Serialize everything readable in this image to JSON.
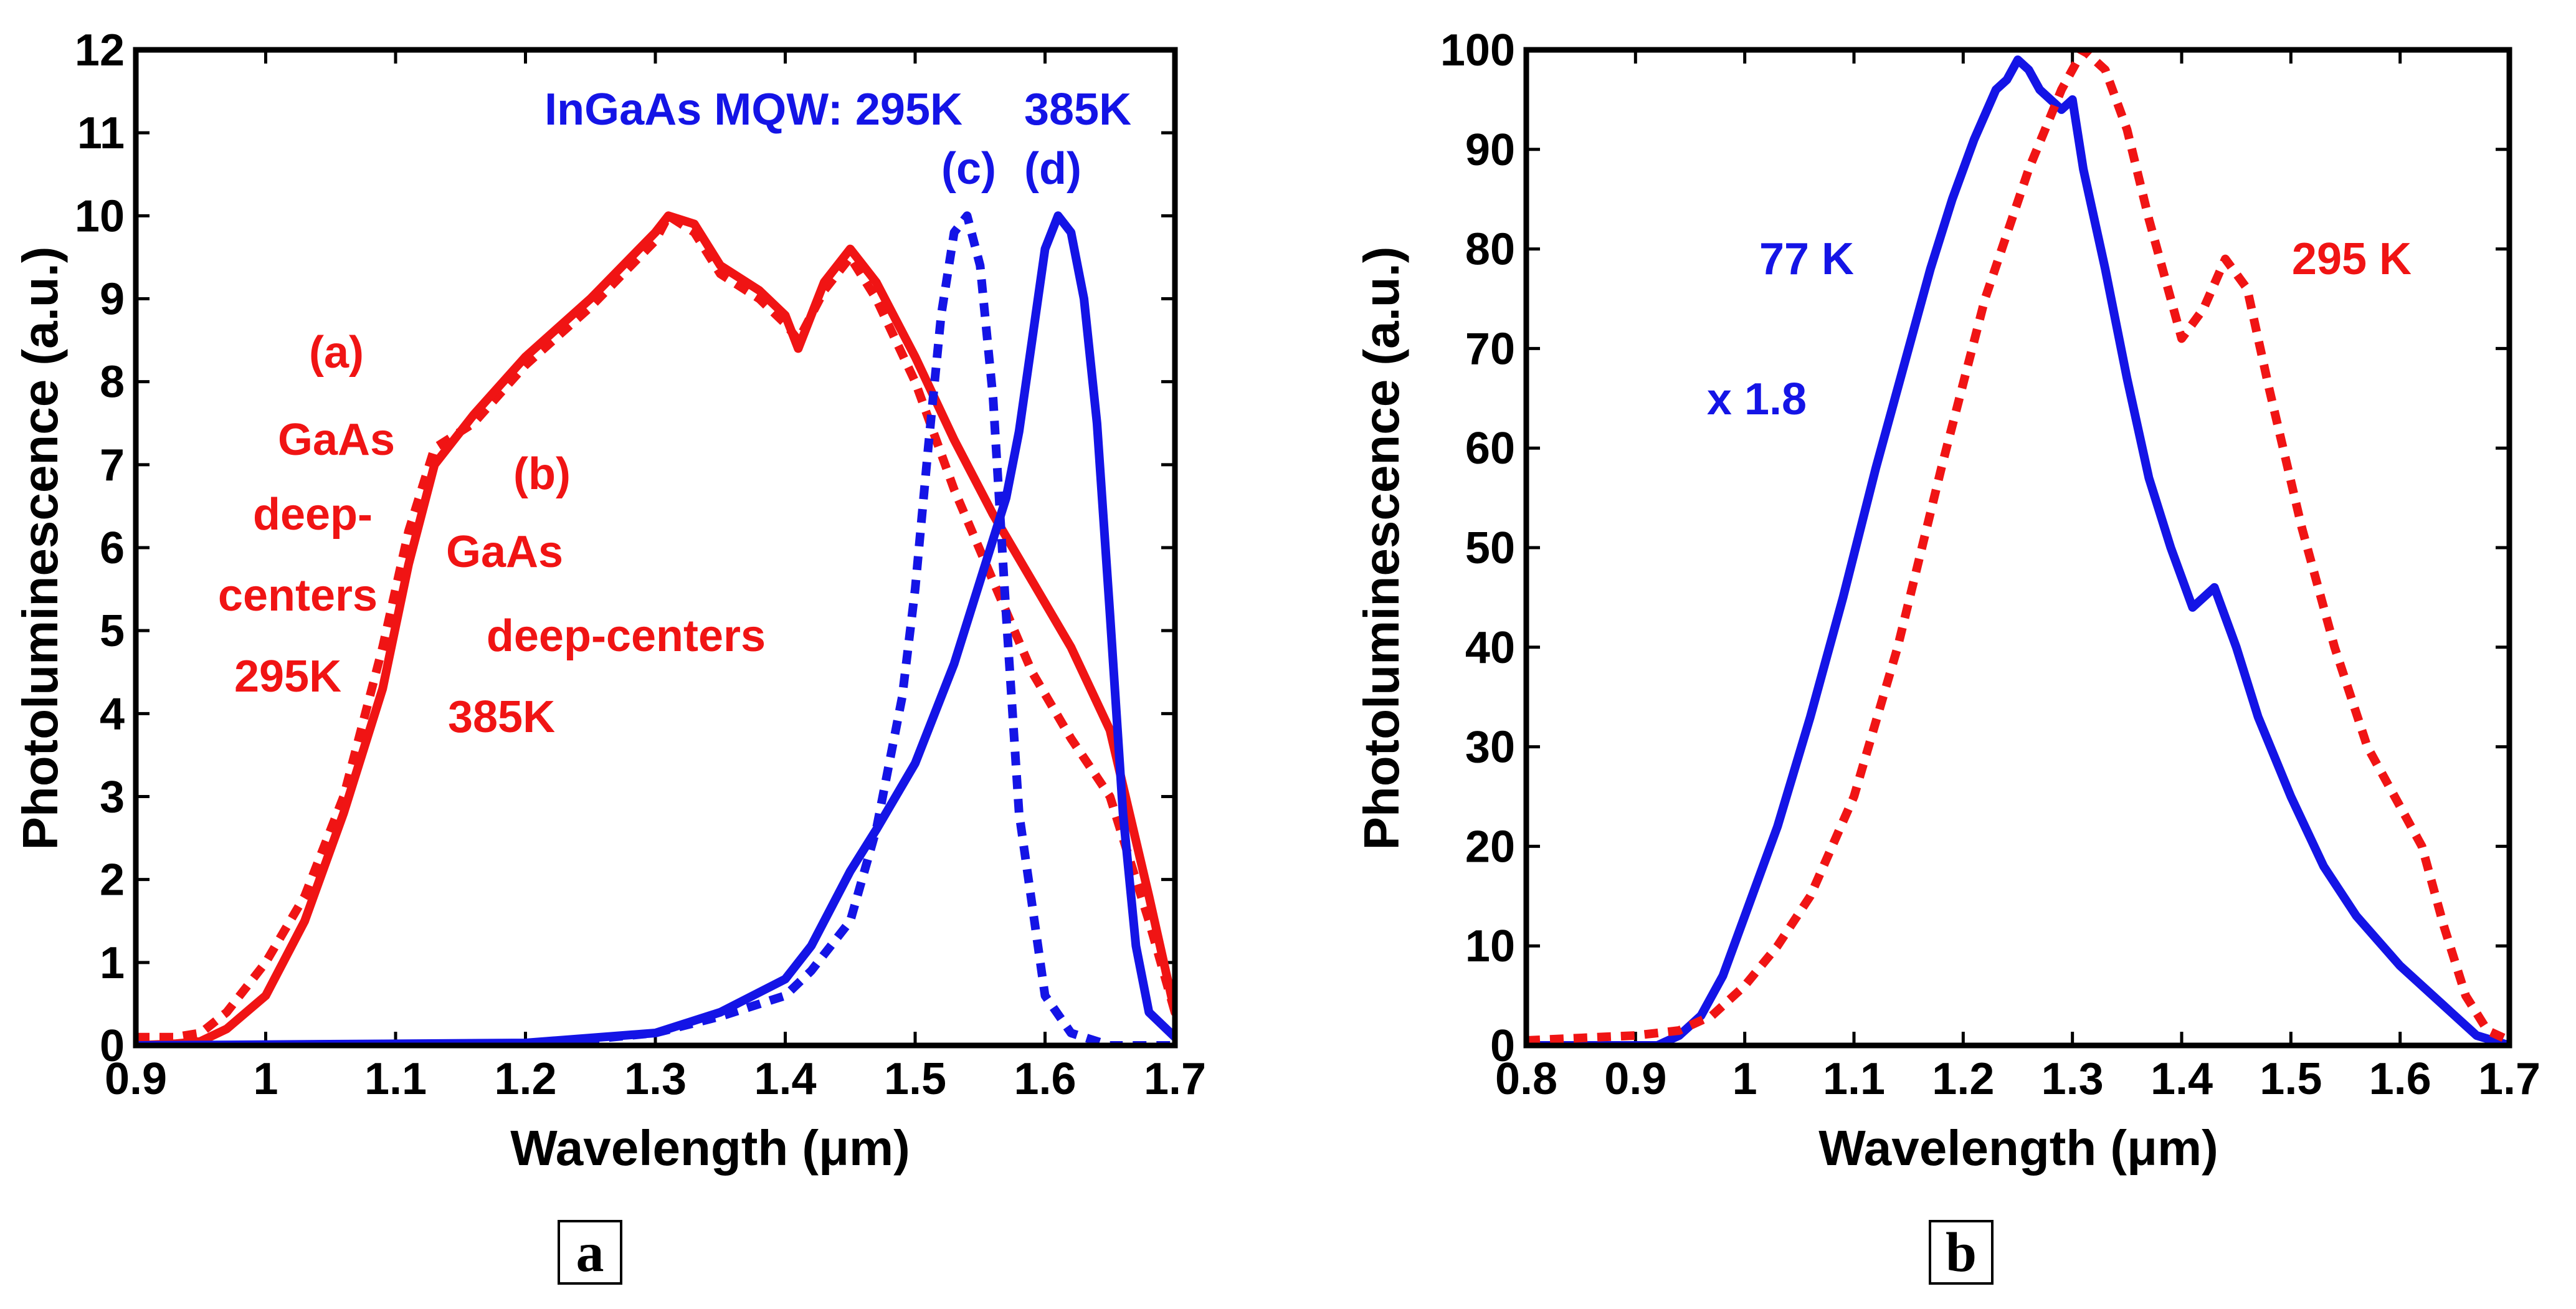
{
  "colors": {
    "red": "#f01414",
    "blue": "#1414e6",
    "axis": "#000000"
  },
  "chart_data": [
    {
      "type": "line",
      "panel_label": "a",
      "xlabel": "Wavelength (μm)",
      "ylabel": "Photoluminescence (a.u.)",
      "xlim": [
        0.9,
        1.7
      ],
      "ylim": [
        0,
        12
      ],
      "xticks": [
        "0.9",
        "1",
        "1.1",
        "1.2",
        "1.3",
        "1.4",
        "1.5",
        "1.6",
        "1.7"
      ],
      "yticks": [
        "0",
        "1",
        "2",
        "3",
        "4",
        "5",
        "6",
        "7",
        "8",
        "9",
        "10",
        "11",
        "12"
      ],
      "annotations": {
        "ingaas_title": "InGaAs MQW: 295K",
        "ingaas_385": "385K",
        "label_c": "(c)",
        "label_d": "(d)",
        "a_line1": "(a)",
        "a_line2": "GaAs",
        "a_line3": "deep-",
        "a_line4": "centers",
        "a_line5": "295K",
        "b_line1": "(b)",
        "b_line2": "GaAs",
        "b_line3": "deep-centers",
        "b_line4": "385K"
      },
      "series": [
        {
          "name": "(a) GaAs deep-centers 295K",
          "color": "red",
          "dash": true,
          "x": [
            0.9,
            0.93,
            0.95,
            0.97,
            1.0,
            1.03,
            1.06,
            1.09,
            1.11,
            1.13,
            1.16,
            1.2,
            1.25,
            1.3,
            1.31,
            1.33,
            1.35,
            1.38,
            1.4,
            1.41,
            1.43,
            1.45,
            1.47,
            1.5,
            1.53,
            1.56,
            1.59,
            1.62,
            1.65,
            1.68,
            1.7
          ],
          "y": [
            0.1,
            0.1,
            0.15,
            0.4,
            1.0,
            1.8,
            3.0,
            4.8,
            6.2,
            7.2,
            7.5,
            8.2,
            8.9,
            9.7,
            10.0,
            9.8,
            9.3,
            9.0,
            8.7,
            8.5,
            9.1,
            9.5,
            9.0,
            8.0,
            6.7,
            5.6,
            4.5,
            3.7,
            3.0,
            1.5,
            0.4
          ]
        },
        {
          "name": "(b) GaAs deep-centers 385K",
          "color": "red",
          "dash": false,
          "x": [
            0.9,
            0.93,
            0.95,
            0.97,
            1.0,
            1.03,
            1.06,
            1.09,
            1.11,
            1.13,
            1.16,
            1.2,
            1.25,
            1.3,
            1.31,
            1.33,
            1.35,
            1.38,
            1.4,
            1.41,
            1.43,
            1.45,
            1.47,
            1.5,
            1.53,
            1.56,
            1.59,
            1.62,
            1.65,
            1.68,
            1.7
          ],
          "y": [
            0.0,
            0.02,
            0.05,
            0.2,
            0.6,
            1.5,
            2.8,
            4.3,
            5.8,
            7.0,
            7.6,
            8.3,
            9.0,
            9.8,
            10.0,
            9.9,
            9.4,
            9.1,
            8.8,
            8.4,
            9.2,
            9.6,
            9.2,
            8.3,
            7.3,
            6.4,
            5.6,
            4.8,
            3.8,
            1.8,
            0.4
          ]
        },
        {
          "name": "(c) InGaAs MQW 295K",
          "color": "blue",
          "dash": true,
          "x": [
            0.9,
            1.2,
            1.3,
            1.35,
            1.4,
            1.42,
            1.45,
            1.47,
            1.49,
            1.5,
            1.51,
            1.52,
            1.53,
            1.54,
            1.55,
            1.56,
            1.57,
            1.58,
            1.6,
            1.62,
            1.65,
            1.7
          ],
          "y": [
            0.0,
            0.0,
            0.15,
            0.35,
            0.6,
            0.9,
            1.5,
            2.6,
            4.2,
            5.5,
            7.2,
            8.8,
            9.8,
            10.0,
            9.4,
            7.8,
            5.2,
            2.8,
            0.6,
            0.15,
            0.0,
            0.0
          ]
        },
        {
          "name": "(d) InGaAs MQW 385K",
          "color": "blue",
          "dash": false,
          "x": [
            0.9,
            1.2,
            1.3,
            1.35,
            1.4,
            1.42,
            1.45,
            1.47,
            1.5,
            1.53,
            1.55,
            1.57,
            1.58,
            1.59,
            1.6,
            1.61,
            1.62,
            1.63,
            1.64,
            1.65,
            1.66,
            1.67,
            1.68,
            1.7
          ],
          "y": [
            0.0,
            0.03,
            0.15,
            0.4,
            0.8,
            1.2,
            2.1,
            2.6,
            3.4,
            4.6,
            5.6,
            6.6,
            7.4,
            8.5,
            9.6,
            10.0,
            9.8,
            9.0,
            7.5,
            5.2,
            2.8,
            1.2,
            0.4,
            0.1
          ]
        }
      ]
    },
    {
      "type": "line",
      "panel_label": "b",
      "xlabel": "Wavelength (μm)",
      "ylabel": "Photoluminescence (a.u.)",
      "xlim": [
        0.8,
        1.7
      ],
      "ylim": [
        0,
        100
      ],
      "xticks": [
        "0.8",
        "0.9",
        "1",
        "1.1",
        "1.2",
        "1.3",
        "1.4",
        "1.5",
        "1.6",
        "1.7"
      ],
      "yticks": [
        "0",
        "10",
        "20",
        "30",
        "40",
        "50",
        "60",
        "70",
        "80",
        "90",
        "100"
      ],
      "annotations": {
        "label_77": "77 K",
        "label_x18": "x 1.8",
        "label_295": "295 K"
      },
      "series": [
        {
          "name": "77 K x 1.8",
          "color": "blue",
          "dash": false,
          "x": [
            0.8,
            0.92,
            0.94,
            0.96,
            0.98,
            1.0,
            1.03,
            1.06,
            1.09,
            1.12,
            1.15,
            1.17,
            1.19,
            1.21,
            1.23,
            1.24,
            1.25,
            1.26,
            1.27,
            1.28,
            1.29,
            1.3,
            1.31,
            1.33,
            1.35,
            1.37,
            1.39,
            1.41,
            1.42,
            1.43,
            1.45,
            1.47,
            1.5,
            1.53,
            1.56,
            1.6,
            1.64,
            1.67,
            1.7
          ],
          "y": [
            0.0,
            0.0,
            1.0,
            3.0,
            7.0,
            13.0,
            22.0,
            33.0,
            45.0,
            58.0,
            70.0,
            78.0,
            85.0,
            91.0,
            96.0,
            97.0,
            99.0,
            98.0,
            96.0,
            95.0,
            94.0,
            95.0,
            88.0,
            78.0,
            67.0,
            57.0,
            50.0,
            44.0,
            45.0,
            46.0,
            40.0,
            33.0,
            25.0,
            18.0,
            13.0,
            8.0,
            4.0,
            1.0,
            0.0
          ]
        },
        {
          "name": "295 K",
          "color": "red",
          "dash": true,
          "x": [
            0.8,
            0.9,
            0.94,
            0.97,
            1.0,
            1.03,
            1.06,
            1.1,
            1.14,
            1.18,
            1.22,
            1.26,
            1.29,
            1.31,
            1.33,
            1.35,
            1.37,
            1.39,
            1.4,
            1.42,
            1.44,
            1.46,
            1.48,
            1.51,
            1.54,
            1.57,
            1.6,
            1.62,
            1.64,
            1.66,
            1.68,
            1.7
          ],
          "y": [
            0.5,
            1.0,
            1.5,
            3.0,
            6.0,
            10.0,
            15.0,
            25.0,
            40.0,
            58.0,
            75.0,
            88.0,
            96.0,
            100.0,
            98.0,
            92.0,
            83.0,
            75.0,
            71.0,
            74.0,
            79.0,
            76.0,
            66.0,
            52.0,
            40.0,
            30.0,
            24.0,
            20.0,
            12.0,
            5.0,
            1.5,
            0.5
          ]
        }
      ]
    }
  ]
}
